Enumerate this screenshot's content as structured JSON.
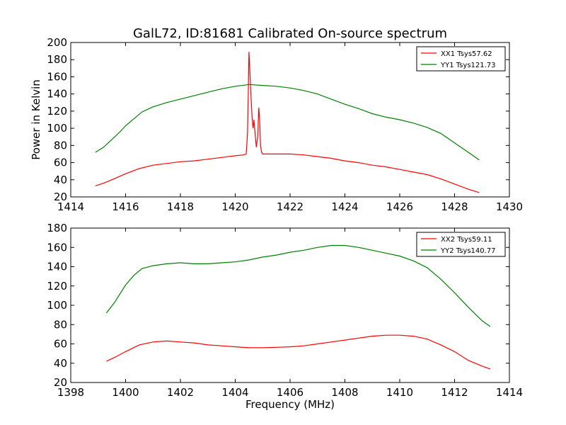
{
  "figure": {
    "title": "GalL72, ID:81681 Calibrated On-source spectrum"
  },
  "chart_data": [
    {
      "type": "line",
      "title": "GalL72, ID:81681 Calibrated On-source spectrum",
      "xlabel": "",
      "ylabel": "Power in Kelvin",
      "xlim": [
        1414,
        1430
      ],
      "ylim": [
        20,
        200
      ],
      "xticks": [
        1414,
        1416,
        1418,
        1420,
        1422,
        1424,
        1426,
        1428,
        1430
      ],
      "yticks": [
        20,
        40,
        60,
        80,
        100,
        120,
        140,
        160,
        180,
        200
      ],
      "grid": false,
      "legend_position": "top-right",
      "series": [
        {
          "name": "XX1 Tsys57.62",
          "color": "#ff0000",
          "points": [
            [
              1414.9,
              33
            ],
            [
              1415.2,
              36
            ],
            [
              1415.5,
              40
            ],
            [
              1416,
              47
            ],
            [
              1416.5,
              53
            ],
            [
              1417,
              57
            ],
            [
              1417.5,
              59
            ],
            [
              1418,
              61
            ],
            [
              1418.5,
              62
            ],
            [
              1419,
              64
            ],
            [
              1419.5,
              66
            ],
            [
              1420,
              68
            ],
            [
              1420.3,
              69
            ],
            [
              1420.4,
              70
            ],
            [
              1420.45,
              95
            ],
            [
              1420.48,
              150
            ],
            [
              1420.5,
              189
            ],
            [
              1420.53,
              170
            ],
            [
              1420.57,
              140
            ],
            [
              1420.62,
              110
            ],
            [
              1420.65,
              100
            ],
            [
              1420.68,
              110
            ],
            [
              1420.72,
              95
            ],
            [
              1420.77,
              78
            ],
            [
              1420.82,
              90
            ],
            [
              1420.86,
              124
            ],
            [
              1420.89,
              110
            ],
            [
              1420.92,
              80
            ],
            [
              1420.96,
              72
            ],
            [
              1421,
              70
            ],
            [
              1421.5,
              70
            ],
            [
              1422,
              70
            ],
            [
              1422.5,
              69
            ],
            [
              1423,
              67
            ],
            [
              1423.5,
              65
            ],
            [
              1424,
              62
            ],
            [
              1424.5,
              60
            ],
            [
              1425,
              57
            ],
            [
              1425.5,
              55
            ],
            [
              1426,
              52
            ],
            [
              1426.5,
              49
            ],
            [
              1427,
              46
            ],
            [
              1427.5,
              41
            ],
            [
              1428,
              35
            ],
            [
              1428.5,
              29
            ],
            [
              1428.9,
              25
            ]
          ]
        },
        {
          "name": "YY1 Tsys121.73",
          "color": "#008000",
          "points": [
            [
              1414.9,
              72
            ],
            [
              1415.2,
              78
            ],
            [
              1415.5,
              87
            ],
            [
              1415.8,
              96
            ],
            [
              1416,
              103
            ],
            [
              1416.3,
              111
            ],
            [
              1416.6,
              119
            ],
            [
              1417,
              125
            ],
            [
              1417.5,
              130
            ],
            [
              1418,
              134
            ],
            [
              1418.5,
              138
            ],
            [
              1419,
              142
            ],
            [
              1419.5,
              146
            ],
            [
              1420,
              149
            ],
            [
              1420.5,
              151
            ],
            [
              1421,
              150
            ],
            [
              1421.5,
              149
            ],
            [
              1422,
              147
            ],
            [
              1422.5,
              144
            ],
            [
              1423,
              140
            ],
            [
              1423.5,
              134
            ],
            [
              1424,
              128
            ],
            [
              1424.5,
              123
            ],
            [
              1425,
              117
            ],
            [
              1425.5,
              113
            ],
            [
              1426,
              110
            ],
            [
              1426.5,
              106
            ],
            [
              1427,
              101
            ],
            [
              1427.5,
              94
            ],
            [
              1428,
              83
            ],
            [
              1428.5,
              72
            ],
            [
              1428.9,
              63
            ]
          ]
        }
      ]
    },
    {
      "type": "line",
      "title": "",
      "xlabel": "Frequency (MHz)",
      "ylabel": "",
      "xlim": [
        1398,
        1414
      ],
      "ylim": [
        20,
        180
      ],
      "xticks": [
        1398,
        1400,
        1402,
        1404,
        1406,
        1408,
        1410,
        1412,
        1414
      ],
      "yticks": [
        20,
        40,
        60,
        80,
        100,
        120,
        140,
        160,
        180
      ],
      "grid": false,
      "legend_position": "top-right",
      "series": [
        {
          "name": "XX2 Tsys59.11",
          "color": "#ff0000",
          "points": [
            [
              1399.3,
              42
            ],
            [
              1399.6,
              46
            ],
            [
              1400,
              52
            ],
            [
              1400.5,
              59
            ],
            [
              1401,
              62
            ],
            [
              1401.5,
              63
            ],
            [
              1402,
              62
            ],
            [
              1402.5,
              61
            ],
            [
              1403,
              59
            ],
            [
              1403.5,
              58
            ],
            [
              1404,
              57
            ],
            [
              1404.5,
              56
            ],
            [
              1405,
              56
            ],
            [
              1405.5,
              56.5
            ],
            [
              1406,
              57
            ],
            [
              1406.5,
              58
            ],
            [
              1407,
              60
            ],
            [
              1407.5,
              62
            ],
            [
              1408,
              64
            ],
            [
              1408.5,
              66
            ],
            [
              1409,
              68
            ],
            [
              1409.5,
              69
            ],
            [
              1410,
              69
            ],
            [
              1410.5,
              68
            ],
            [
              1411,
              65
            ],
            [
              1411.5,
              59
            ],
            [
              1412,
              52
            ],
            [
              1412.5,
              43
            ],
            [
              1413,
              37
            ],
            [
              1413.3,
              34
            ]
          ]
        },
        {
          "name": "YY2 Tsys140.77",
          "color": "#008000",
          "points": [
            [
              1399.3,
              92
            ],
            [
              1399.6,
              103
            ],
            [
              1400,
              121
            ],
            [
              1400.3,
              131
            ],
            [
              1400.6,
              138
            ],
            [
              1401,
              141
            ],
            [
              1401.5,
              143
            ],
            [
              1402,
              144
            ],
            [
              1402.5,
              143
            ],
            [
              1403,
              143
            ],
            [
              1403.5,
              144
            ],
            [
              1404,
              145
            ],
            [
              1404.5,
              147
            ],
            [
              1405,
              150
            ],
            [
              1405.5,
              152
            ],
            [
              1406,
              155
            ],
            [
              1406.5,
              157
            ],
            [
              1407,
              160
            ],
            [
              1407.5,
              162
            ],
            [
              1408,
              162
            ],
            [
              1408.5,
              160
            ],
            [
              1409,
              157
            ],
            [
              1409.5,
              154
            ],
            [
              1410,
              151
            ],
            [
              1410.5,
              146
            ],
            [
              1411,
              139
            ],
            [
              1411.5,
              127
            ],
            [
              1412,
              113
            ],
            [
              1412.5,
              98
            ],
            [
              1413,
              84
            ],
            [
              1413.3,
              78
            ]
          ]
        }
      ]
    }
  ]
}
